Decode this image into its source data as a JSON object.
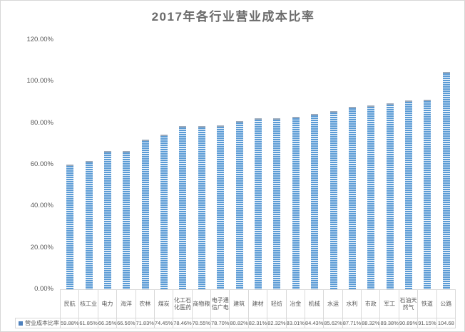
{
  "title": "2017年各行业营业成本比率",
  "legend": {
    "series_label": "营业成本比率",
    "marker_color": "#4e81bd"
  },
  "colors": {
    "bar_blue": "#5b9bd5",
    "bar_stripe_light": "#eaf3fb",
    "bar_cap": "#9aa9bb",
    "grid_border": "#d9d9d9",
    "text_gray": "#595959",
    "title_gray": "#6b6b6b"
  },
  "chart_data": {
    "type": "bar",
    "title": "2017年各行业营业成本比率",
    "series_name": "营业成本比率",
    "categories": [
      "民航",
      "核工业",
      "电力",
      "海洋",
      "农林",
      "煤炭",
      "化工石化医药",
      "商物粮",
      "电子通信广电",
      "建筑",
      "建材",
      "轻纺",
      "冶金",
      "机械",
      "水运",
      "水利",
      "市政",
      "军工",
      "石油天然气",
      "铁道",
      "公路"
    ],
    "series": [
      {
        "name": "营业成本比率",
        "values": [
          59.88,
          61.85,
          66.35,
          66.56,
          71.83,
          74.45,
          78.46,
          78.55,
          78.7,
          80.82,
          82.31,
          82.32,
          83.01,
          84.43,
          85.62,
          87.71,
          88.32,
          89.38,
          90.89,
          91.15,
          104.68
        ]
      }
    ],
    "value_labels": [
      "59.88%",
      "61.85%",
      "66.35%",
      "66.56%",
      "71.83%",
      "74.45%",
      "78.46%",
      "78.55%",
      "78.70%",
      "80.82%",
      "82.31%",
      "82.32%",
      "83.01%",
      "84.43%",
      "85.62%",
      "87.71%",
      "88.32%",
      "89.38%",
      "90.89%",
      "91.15%",
      "104.68"
    ],
    "xlabel": "",
    "ylabel": "",
    "ylim": [
      0,
      120
    ],
    "yticks": [
      {
        "label": "120.00%",
        "value": 120
      },
      {
        "label": "100.00%",
        "value": 100
      },
      {
        "label": "80.00%",
        "value": 80
      },
      {
        "label": "60.00%",
        "value": 60
      },
      {
        "label": "40.00%",
        "value": 40
      },
      {
        "label": "20.00%",
        "value": 20
      },
      {
        "label": "0.00%",
        "value": 0
      }
    ],
    "grid": false,
    "legend_position": "bottom-table"
  }
}
